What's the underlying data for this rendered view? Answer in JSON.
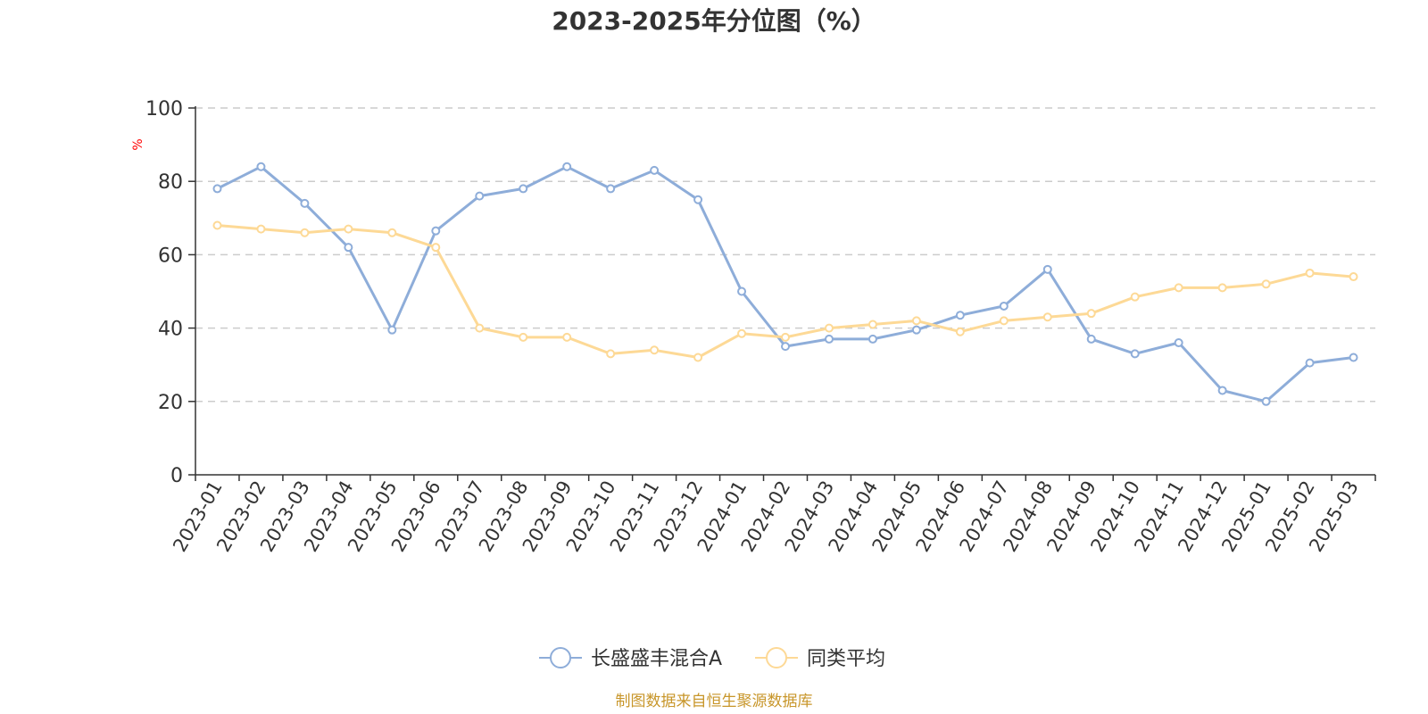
{
  "chart_data": {
    "type": "line",
    "title": "2023-2025年分位图（%）",
    "ylabel": "%",
    "ylim": [
      0,
      100
    ],
    "yticks": [
      0,
      20,
      40,
      60,
      80,
      100
    ],
    "grid": true,
    "legend_position": "bottom-center",
    "categories": [
      "2023-01",
      "2023-02",
      "2023-03",
      "2023-04",
      "2023-05",
      "2023-06",
      "2023-07",
      "2023-08",
      "2023-09",
      "2023-10",
      "2023-11",
      "2023-12",
      "2024-01",
      "2024-02",
      "2024-03",
      "2024-04",
      "2024-05",
      "2024-06",
      "2024-07",
      "2024-08",
      "2024-09",
      "2024-10",
      "2024-11",
      "2024-12",
      "2025-01",
      "2025-02",
      "2025-03"
    ],
    "series": [
      {
        "name": "长盛盛丰混合A",
        "color": "#8eadd9",
        "values": [
          78,
          84,
          74,
          62,
          39.5,
          66.5,
          76,
          78,
          84,
          78,
          83,
          75,
          50,
          35,
          37,
          37,
          39.5,
          43.5,
          46,
          56,
          37,
          33,
          36,
          23,
          20,
          30.5,
          32
        ]
      },
      {
        "name": "同类平均",
        "color": "#fdd996",
        "values": [
          68,
          67,
          66,
          67,
          66,
          62,
          40,
          37.5,
          37.5,
          33,
          34,
          32,
          38.5,
          37.5,
          40,
          41,
          42,
          39,
          42,
          43,
          44,
          48.5,
          51,
          51,
          52,
          55,
          54
        ]
      }
    ]
  },
  "source": "制图数据来自恒生聚源数据库"
}
